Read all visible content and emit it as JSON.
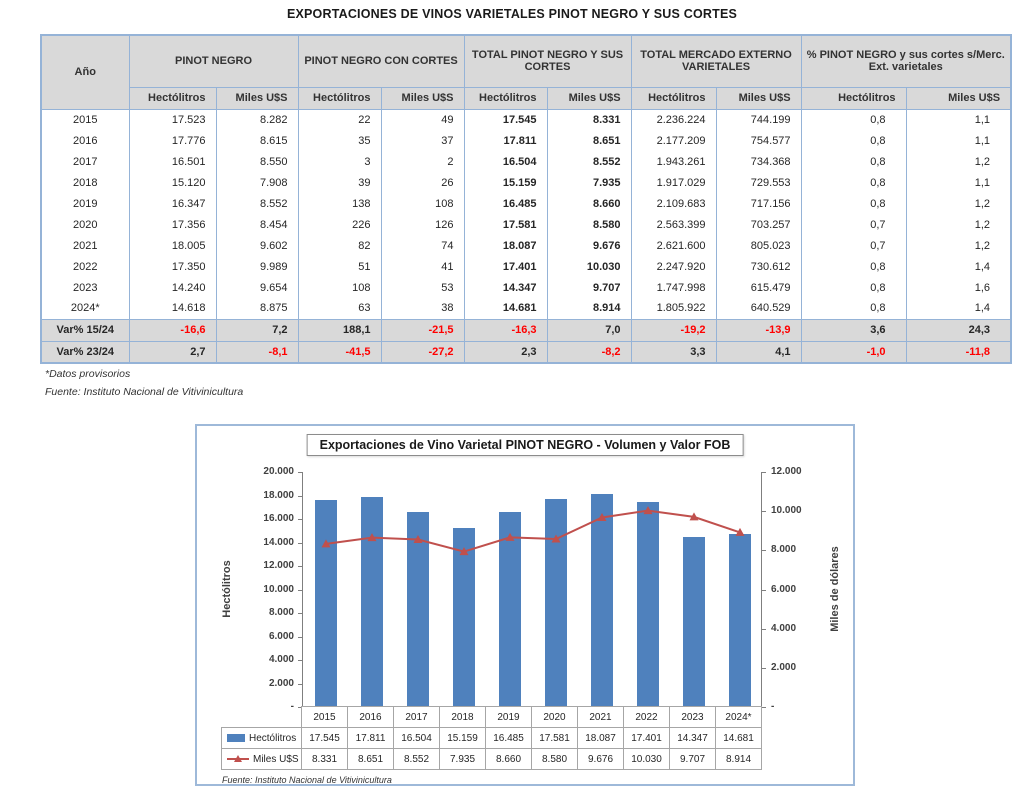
{
  "page_title": "EXPORTACIONES DE VINOS VARIETALES PINOT NEGRO Y SUS CORTES",
  "table": {
    "year_header": "Año",
    "col_groups": [
      "PINOT NEGRO",
      "PINOT NEGRO CON CORTES",
      "TOTAL PINOT NEGRO Y SUS CORTES",
      "TOTAL MERCADO EXTERNO VARIETALES",
      "% PINOT NEGRO y sus cortes s/Merc. Ext. varietales"
    ],
    "sub_headers": [
      "Hectólitros",
      "Miles U$S"
    ],
    "rows": [
      {
        "year": "2015",
        "values": [
          "17.523",
          "8.282",
          "22",
          "49",
          "17.545",
          "8.331",
          "2.236.224",
          "744.199",
          "0,8",
          "1,1"
        ]
      },
      {
        "year": "2016",
        "values": [
          "17.776",
          "8.615",
          "35",
          "37",
          "17.811",
          "8.651",
          "2.177.209",
          "754.577",
          "0,8",
          "1,1"
        ]
      },
      {
        "year": "2017",
        "values": [
          "16.501",
          "8.550",
          "3",
          "2",
          "16.504",
          "8.552",
          "1.943.261",
          "734.368",
          "0,8",
          "1,2"
        ]
      },
      {
        "year": "2018",
        "values": [
          "15.120",
          "7.908",
          "39",
          "26",
          "15.159",
          "7.935",
          "1.917.029",
          "729.553",
          "0,8",
          "1,1"
        ]
      },
      {
        "year": "2019",
        "values": [
          "16.347",
          "8.552",
          "138",
          "108",
          "16.485",
          "8.660",
          "2.109.683",
          "717.156",
          "0,8",
          "1,2"
        ]
      },
      {
        "year": "2020",
        "values": [
          "17.356",
          "8.454",
          "226",
          "126",
          "17.581",
          "8.580",
          "2.563.399",
          "703.257",
          "0,7",
          "1,2"
        ]
      },
      {
        "year": "2021",
        "values": [
          "18.005",
          "9.602",
          "82",
          "74",
          "18.087",
          "9.676",
          "2.621.600",
          "805.023",
          "0,7",
          "1,2"
        ]
      },
      {
        "year": "2022",
        "values": [
          "17.350",
          "9.989",
          "51",
          "41",
          "17.401",
          "10.030",
          "2.247.920",
          "730.612",
          "0,8",
          "1,4"
        ]
      },
      {
        "year": "2023",
        "values": [
          "14.240",
          "9.654",
          "108",
          "53",
          "14.347",
          "9.707",
          "1.747.998",
          "615.479",
          "0,8",
          "1,6"
        ]
      },
      {
        "year": "2024*",
        "values": [
          "14.618",
          "8.875",
          "63",
          "38",
          "14.681",
          "8.914",
          "1.805.922",
          "640.529",
          "0,8",
          "1,4"
        ]
      }
    ],
    "var_rows": [
      {
        "label": "Var% 15/24",
        "values": [
          "-16,6",
          "7,2",
          "188,1",
          "-21,5",
          "-16,3",
          "7,0",
          "-19,2",
          "-13,9",
          "3,6",
          "24,3"
        ]
      },
      {
        "label": "Var% 23/24",
        "values": [
          "2,7",
          "-8,1",
          "-41,5",
          "-27,2",
          "2,3",
          "-8,2",
          "3,3",
          "4,1",
          "-1,0",
          "-11,8"
        ]
      }
    ],
    "footnotes": {
      "provisional": "*Datos provisorios",
      "source": "Fuente: Instituto Nacional de Vitivinicultura"
    }
  },
  "chart_data": {
    "type": "combo",
    "title": "Exportaciones de Vino Varietal PINOT NEGRO - Volumen y Valor FOB",
    "categories": [
      "2015",
      "2016",
      "2017",
      "2018",
      "2019",
      "2020",
      "2021",
      "2022",
      "2023",
      "2024*"
    ],
    "series": [
      {
        "name": "Hectólitros",
        "type": "bar",
        "axis": "left",
        "color": "#4F81BD",
        "values": [
          17545,
          17811,
          16504,
          15159,
          16485,
          17581,
          18087,
          17401,
          14347,
          14681
        ],
        "labels": [
          "17.545",
          "17.811",
          "16.504",
          "15.159",
          "16.485",
          "17.581",
          "18.087",
          "17.401",
          "14.347",
          "14.681"
        ]
      },
      {
        "name": "Miles U$S",
        "type": "line",
        "axis": "right",
        "color": "#C0504D",
        "values": [
          8331,
          8651,
          8552,
          7935,
          8660,
          8580,
          9676,
          10030,
          9707,
          8914
        ],
        "labels": [
          "8.331",
          "8.651",
          "8.552",
          "7.935",
          "8.660",
          "8.580",
          "9.676",
          "10.030",
          "9.707",
          "8.914"
        ]
      }
    ],
    "left_axis": {
      "label": "Hectólitros",
      "min": 0,
      "max": 20000,
      "step": 2000,
      "ticks": [
        "20.000",
        "18.000",
        "16.000",
        "14.000",
        "12.000",
        "10.000",
        "8.000",
        "6.000",
        "4.000",
        "2.000",
        "-"
      ]
    },
    "right_axis": {
      "label": "Miles de dólares",
      "min": 0,
      "max": 12000,
      "step": 2000,
      "ticks": [
        "12.000",
        "10.000",
        "8.000",
        "6.000",
        "4.000",
        "2.000",
        "-"
      ]
    },
    "grid": false,
    "legend_position": "table-left",
    "source": "Fuente: Instituto Nacional de Vitivinicultura",
    "colors": {
      "bar": "#4F81BD",
      "line": "#C0504D",
      "negative": "#FF0000",
      "table_border": "#95B3D7",
      "header_bg": "#D9D9D9"
    }
  }
}
